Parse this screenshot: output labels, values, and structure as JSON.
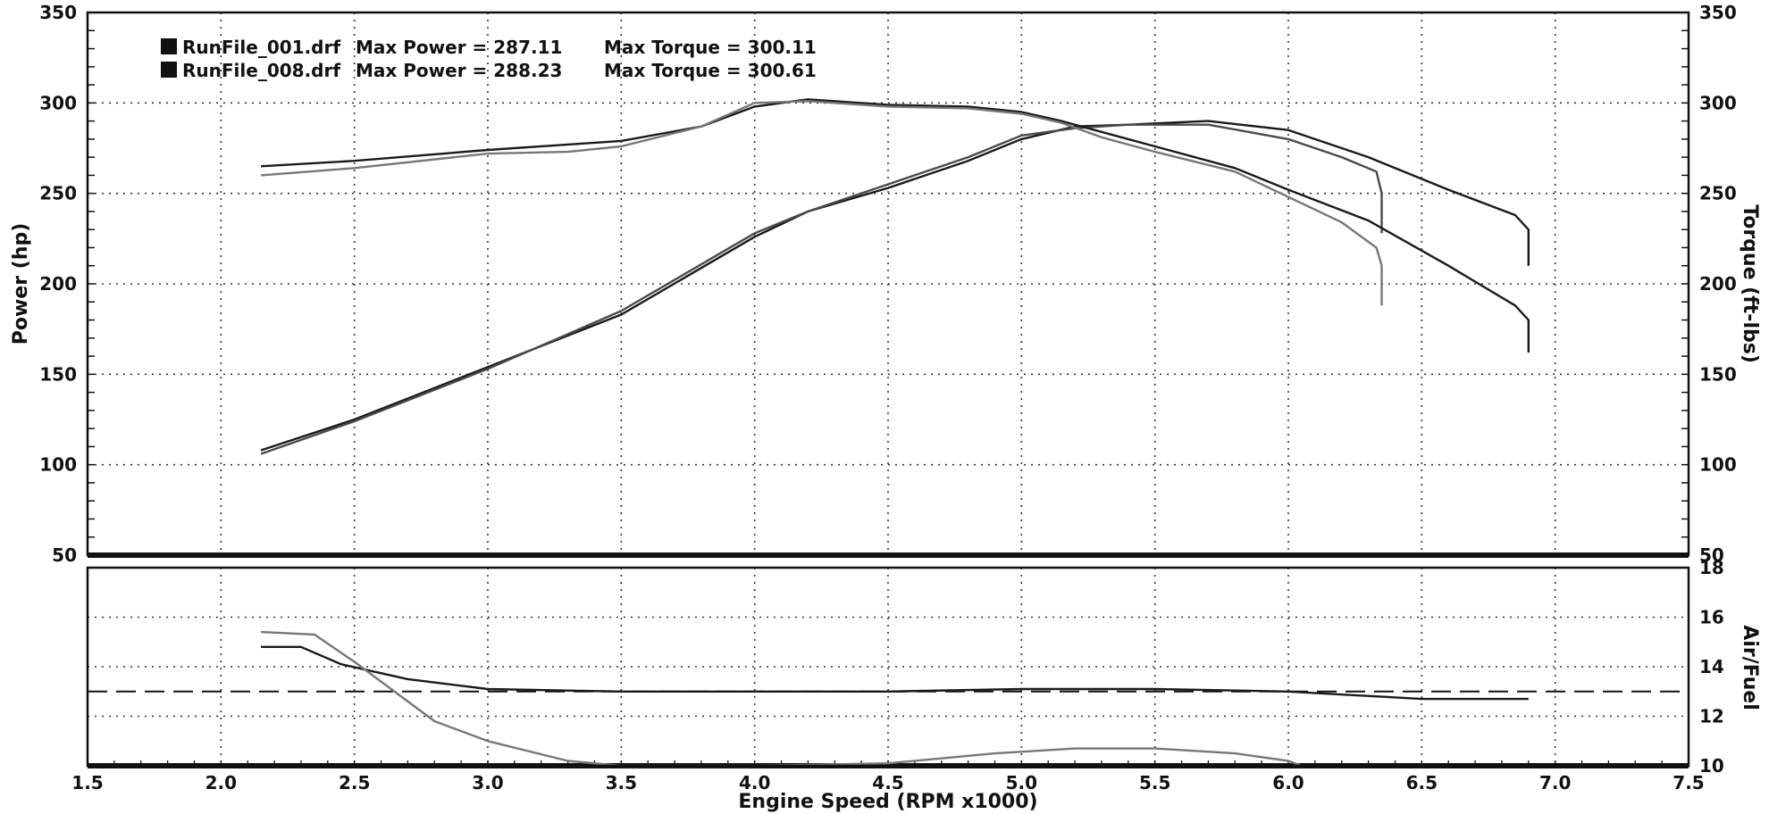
{
  "chart_data": [
    {
      "type": "line",
      "title": "",
      "xlabel": "",
      "ylabel": "Power (hp)",
      "y2label": "Torque (ft-lbs)",
      "xlim": [
        1.5,
        7.5
      ],
      "ylim": [
        50,
        350
      ],
      "y2lim": [
        50,
        350
      ],
      "grid": true,
      "legend_position": "top-left",
      "x_ticks": [
        "1.5",
        "2.0",
        "2.5",
        "3.0",
        "3.5",
        "4.0",
        "4.5",
        "5.0",
        "5.5",
        "6.0",
        "6.5",
        "7.0",
        "7.5"
      ],
      "y_ticks": [
        "50",
        "100",
        "150",
        "200",
        "250",
        "300",
        "350"
      ],
      "y2_ticks": [
        "50",
        "100",
        "150",
        "200",
        "250",
        "300",
        "350"
      ],
      "legend": [
        {
          "file": "RunFile_001.drf",
          "max_power_label": "Max Power",
          "max_power": "287.11",
          "max_torque_label": "Max Torque",
          "max_torque": "300.11"
        },
        {
          "file": "RunFile_008.drf",
          "max_power_label": "Max Power",
          "max_power": "288.23",
          "max_torque_label": "Max Torque",
          "max_torque": "300.61"
        }
      ],
      "series": [
        {
          "kind": "power",
          "color": "#1a1a1a",
          "x": [
            2.15,
            2.5,
            3.0,
            3.5,
            4.0,
            4.2,
            4.5,
            4.8,
            5.0,
            5.2,
            5.4,
            5.7,
            6.0,
            6.3,
            6.6,
            6.85,
            6.9,
            6.9
          ],
          "y": [
            108,
            125,
            154,
            183,
            226,
            240,
            253,
            268,
            280,
            287,
            288,
            290,
            285,
            270,
            252,
            238,
            230,
            210
          ]
        },
        {
          "kind": "power",
          "color": "#4a4a4a",
          "x": [
            2.15,
            2.5,
            3.0,
            3.5,
            4.0,
            4.2,
            4.5,
            4.8,
            5.0,
            5.2,
            5.4,
            5.7,
            6.0,
            6.2,
            6.33,
            6.35,
            6.35
          ],
          "y": [
            106,
            124,
            153,
            185,
            228,
            240,
            255,
            270,
            282,
            286,
            288,
            288,
            280,
            270,
            262,
            250,
            228
          ]
        },
        {
          "kind": "torque",
          "color": "#1a1a1a",
          "x": [
            2.15,
            2.5,
            3.0,
            3.3,
            3.5,
            3.8,
            4.0,
            4.2,
            4.5,
            4.8,
            5.0,
            5.15,
            5.3,
            5.5,
            5.8,
            6.0,
            6.3,
            6.6,
            6.85,
            6.9,
            6.9
          ],
          "y": [
            265,
            268,
            274,
            277,
            279,
            287,
            298,
            302,
            299,
            298,
            295,
            290,
            284,
            276,
            264,
            252,
            235,
            210,
            188,
            180,
            162
          ]
        },
        {
          "kind": "torque",
          "color": "#777777",
          "x": [
            2.15,
            2.5,
            3.0,
            3.3,
            3.5,
            3.8,
            4.0,
            4.2,
            4.5,
            4.8,
            5.0,
            5.15,
            5.3,
            5.5,
            5.8,
            6.0,
            6.2,
            6.33,
            6.35,
            6.35
          ],
          "y": [
            260,
            264,
            272,
            273,
            276,
            287,
            300,
            301,
            298,
            297,
            294,
            289,
            281,
            273,
            262,
            248,
            234,
            220,
            210,
            188
          ]
        }
      ]
    },
    {
      "type": "line",
      "title": "",
      "xlabel": "Engine Speed (RPM x1000)",
      "ylabel": "Air/Fuel",
      "xlim": [
        1.5,
        7.5
      ],
      "ylim": [
        10,
        18
      ],
      "grid": true,
      "y_ticks": [
        "10",
        "12",
        "14",
        "16",
        "18"
      ],
      "reference_line": {
        "y": 13.0,
        "style": "dashed"
      },
      "series": [
        {
          "color": "#1a1a1a",
          "x": [
            2.15,
            2.3,
            2.45,
            2.7,
            3.0,
            3.5,
            4.0,
            4.5,
            5.0,
            5.5,
            6.0,
            6.5,
            6.9
          ],
          "y": [
            14.8,
            14.8,
            14.1,
            13.5,
            13.1,
            13.0,
            13.0,
            13.0,
            13.1,
            13.1,
            13.0,
            12.7,
            12.7
          ]
        },
        {
          "color": "#777777",
          "x": [
            2.15,
            2.35,
            2.5,
            2.8,
            3.0,
            3.3,
            3.5,
            4.0,
            4.5,
            4.9,
            5.2,
            5.5,
            5.8,
            6.0,
            6.05
          ],
          "y": [
            15.4,
            15.3,
            14.2,
            11.8,
            11.0,
            10.2,
            10.0,
            10.0,
            10.1,
            10.5,
            10.7,
            10.7,
            10.5,
            10.2,
            10.0
          ]
        }
      ]
    }
  ]
}
